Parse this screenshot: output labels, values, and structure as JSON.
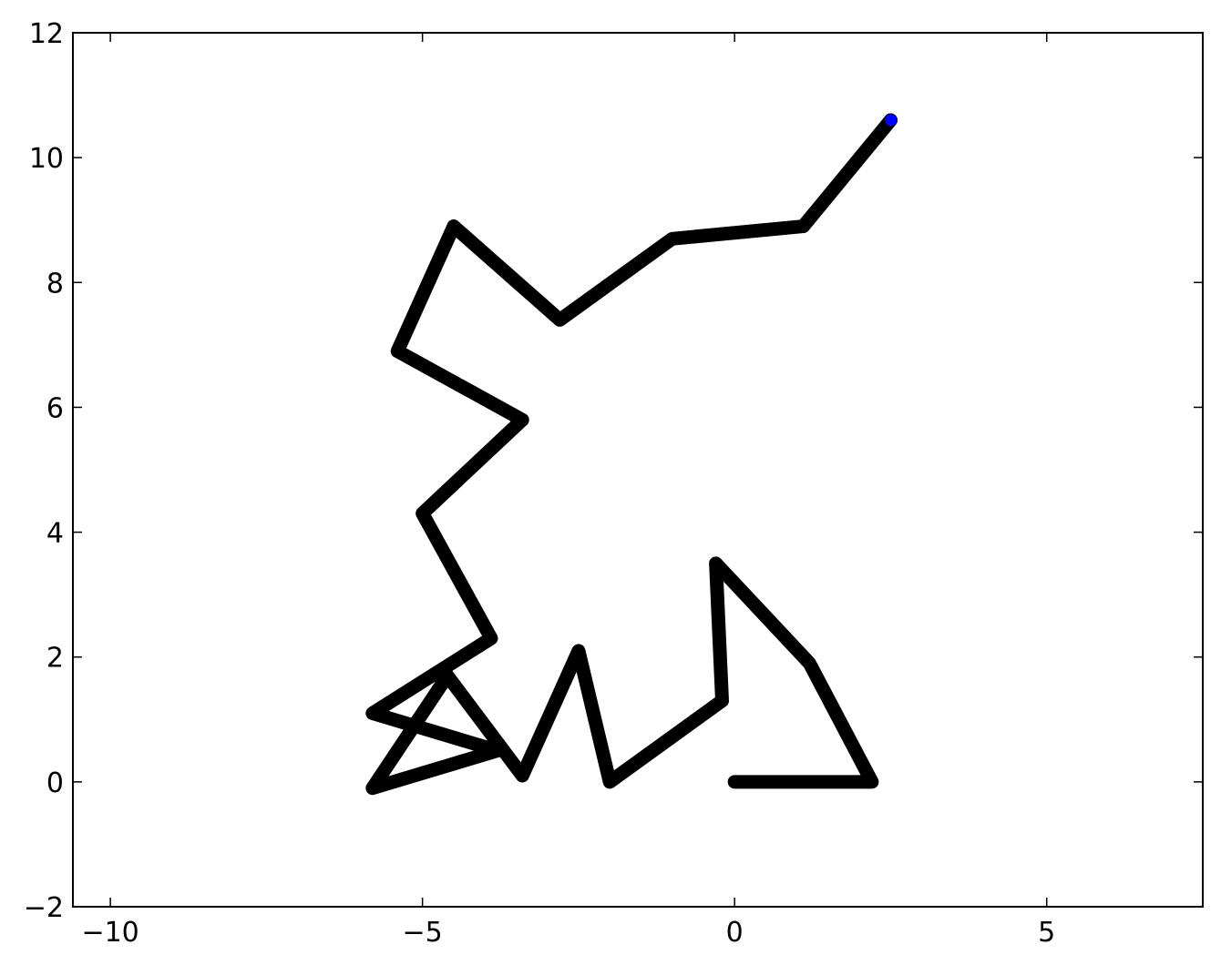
{
  "chart_data": {
    "type": "line",
    "title": "",
    "xlabel": "",
    "ylabel": "",
    "xlim": [
      -10.6,
      7.5
    ],
    "ylim": [
      -2,
      12
    ],
    "x_ticks": [
      -10,
      -5,
      0,
      5
    ],
    "x_tick_labels": [
      "−10",
      "−5",
      "0",
      "5"
    ],
    "y_ticks": [
      -2,
      0,
      2,
      4,
      6,
      8,
      10,
      12
    ],
    "y_tick_labels": [
      "−2",
      "0",
      "2",
      "4",
      "6",
      "8",
      "10",
      "12"
    ],
    "grid": false,
    "legend": "none",
    "series": [
      {
        "color": "#000000",
        "marker": "none",
        "x": [
          0,
          2.2,
          1.2,
          -0.3,
          -0.2,
          -2.0,
          -2.5,
          -3.4,
          -4.6,
          -5.8,
          -3.8,
          -5.8,
          -3.9,
          -5.0,
          -3.4,
          -5.4,
          -4.5,
          -2.8,
          -1.0,
          1.1,
          2.5
        ],
        "y": [
          0,
          0,
          1.9,
          3.5,
          1.3,
          0,
          2.1,
          0.1,
          1.7,
          -0.1,
          0.5,
          1.1,
          2.3,
          4.3,
          5.8,
          6.9,
          8.9,
          7.4,
          8.7,
          8.9,
          10.6
        ]
      },
      {
        "color": "#0000ff",
        "marker": "circle",
        "x": [
          2.5
        ],
        "y": [
          10.6
        ]
      }
    ]
  }
}
